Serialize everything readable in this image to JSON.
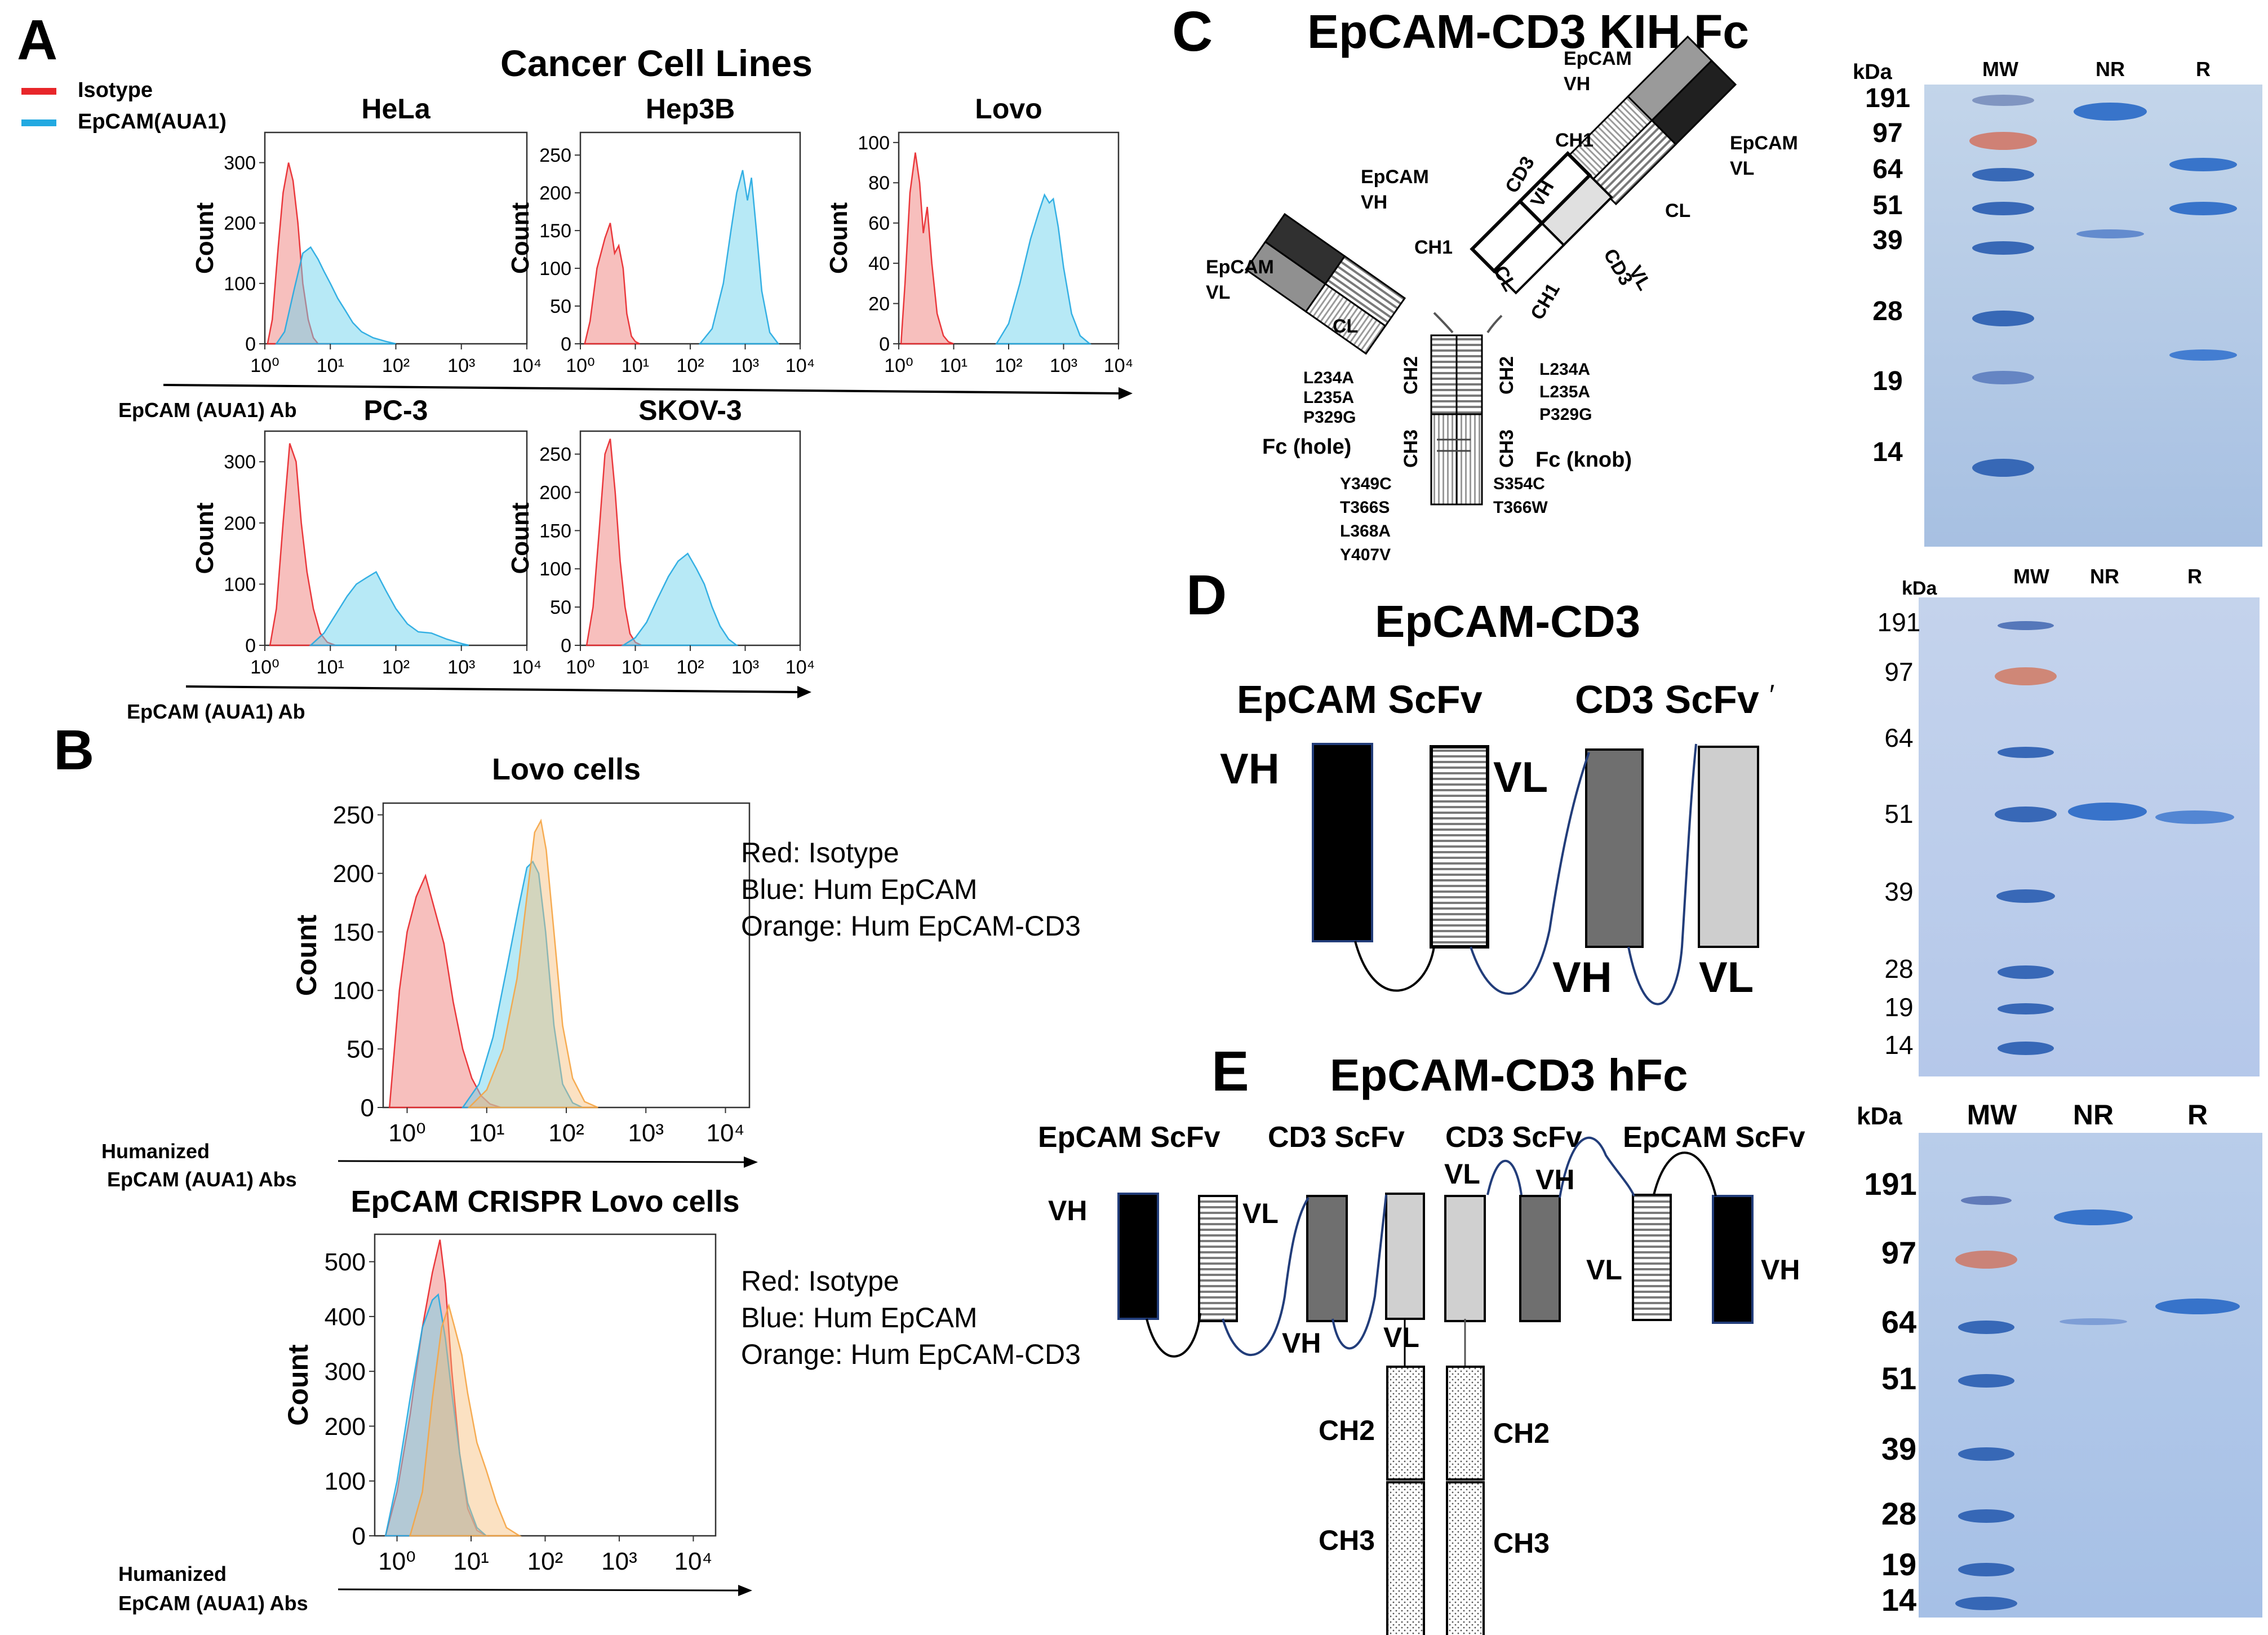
{
  "panels": {
    "A": {
      "letter": "A",
      "title": "Cancer Cell Lines",
      "legend": [
        {
          "label": "Isotype",
          "color": "#e8262a"
        },
        {
          "label": "EpCAM(AUA1)",
          "color": "#22a9e1"
        }
      ],
      "xlabel": "EpCAM (AUA1) Ab",
      "ylabel": "Count",
      "x_ticks": [
        "10⁰",
        "10¹",
        "10²",
        "10³",
        "10⁴"
      ]
    },
    "B": {
      "letter": "B",
      "xlabel_line1": "Humanized",
      "xlabel_line2": "EpCAM (AUA1) Abs",
      "legend_lines": [
        "Red: Isotype",
        "Blue: Hum EpCAM",
        "Orange: Hum EpCAM-CD3"
      ],
      "ylabel": "Count",
      "x_ticks": [
        "10⁰",
        "10¹",
        "10²",
        "10³",
        "10⁴"
      ]
    },
    "C": {
      "letter": "C",
      "title": "EpCAM-CD3 KIH Fc",
      "domains": {
        "epcam_vh_top": "EpCAM",
        "vh": "VH",
        "vl": "VL",
        "epcam": "EpCAM",
        "ch1": "CH1",
        "cl": "CL",
        "cd3": "CD3",
        "ch2": "CH2",
        "ch3": "CH3",
        "fc_hole": "Fc (hole)",
        "fc_knob": "Fc (knob)"
      },
      "mutations_left": [
        "L234A",
        "L235A",
        "P329G"
      ],
      "mutations_right": [
        "L234A",
        "L235A",
        "P329G"
      ],
      "hole_mutations": [
        "Y349C",
        "T366S",
        "L368A",
        "Y407V"
      ],
      "knob_mutations": [
        "S354C",
        "T366W"
      ]
    },
    "D": {
      "letter": "D",
      "title": "EpCAM-CD3",
      "epcam_scfv": "EpCAM ScFv",
      "cd3_scfv": "CD3 ScFv",
      "cd3_mark": "′",
      "vh": "VH",
      "vl": "VL"
    },
    "E": {
      "letter": "E",
      "title": "EpCAM-CD3 hFc",
      "scfv_labels": [
        "EpCAM ScFv",
        "CD3 ScFv",
        "CD3 ScFv",
        "EpCAM ScFv"
      ],
      "vh": "VH",
      "vl": "VL",
      "ch2": "CH2",
      "ch3": "CH3"
    }
  },
  "gels": [
    {
      "name": "KIH Fc gel",
      "kda": "kDa",
      "lanes": [
        "MW",
        "NR",
        "R"
      ],
      "markers": [
        "191",
        "97",
        "64",
        "51",
        "39",
        "28",
        "19",
        "14"
      ]
    },
    {
      "name": "EpCAM-CD3 gel",
      "kda": "kDa",
      "lanes": [
        "MW",
        "NR",
        "R"
      ],
      "markers": [
        "191",
        "97",
        "64",
        "51",
        "39",
        "28",
        "19",
        "14"
      ]
    },
    {
      "name": "hFc gel",
      "kda": "kDa",
      "lanes": [
        "MW",
        "NR",
        "R"
      ],
      "markers": [
        "191",
        "97",
        "64",
        "51",
        "39",
        "28",
        "19",
        "14"
      ]
    }
  ],
  "chart_data": [
    {
      "type": "area",
      "title": "HeLa",
      "xscale": "log",
      "xlim": [
        1,
        10000
      ],
      "ylim": [
        0,
        350
      ],
      "yticks": [
        0,
        100,
        200,
        300
      ],
      "series": [
        {
          "name": "Isotype",
          "color": "#e8262a",
          "x": [
            1.1,
            1.3,
            1.6,
            1.9,
            2.3,
            2.7,
            3.2,
            3.8,
            4.6,
            5.5,
            6.5,
            8,
            10
          ],
          "y": [
            0,
            40,
            160,
            250,
            300,
            270,
            200,
            100,
            40,
            10,
            0,
            0,
            0
          ]
        },
        {
          "name": "EpCAM(AUA1)",
          "color": "#22a9e1",
          "x": [
            1.5,
            2,
            2.8,
            3.8,
            5,
            6.5,
            8,
            10,
            13,
            17,
            22,
            30,
            45,
            70,
            100
          ],
          "y": [
            0,
            20,
            90,
            150,
            160,
            140,
            120,
            100,
            75,
            55,
            35,
            20,
            10,
            4,
            0
          ]
        }
      ]
    },
    {
      "type": "area",
      "title": "Hep3B",
      "xscale": "log",
      "xlim": [
        1,
        10000
      ],
      "ylim": [
        0,
        280
      ],
      "yticks": [
        0,
        50,
        100,
        150,
        200,
        250
      ],
      "series": [
        {
          "name": "Isotype",
          "color": "#e8262a",
          "x": [
            1.2,
            1.5,
            2,
            2.8,
            3.5,
            4.2,
            5,
            6,
            7,
            8.5,
            10,
            12
          ],
          "y": [
            0,
            30,
            100,
            140,
            160,
            120,
            130,
            100,
            40,
            10,
            3,
            0
          ]
        },
        {
          "name": "EpCAM(AUA1)",
          "color": "#22a9e1",
          "x": [
            150,
            250,
            400,
            550,
            700,
            900,
            1100,
            1300,
            1600,
            2000,
            2800,
            4000
          ],
          "y": [
            0,
            20,
            80,
            150,
            200,
            230,
            190,
            220,
            150,
            70,
            15,
            0
          ]
        }
      ]
    },
    {
      "type": "area",
      "title": "Lovo",
      "xscale": "log",
      "xlim": [
        1,
        10000
      ],
      "ylim": [
        0,
        105
      ],
      "yticks": [
        0,
        20,
        40,
        60,
        80,
        100
      ],
      "series": [
        {
          "name": "Isotype",
          "color": "#e8262a",
          "x": [
            1.1,
            1.3,
            1.6,
            2,
            2.4,
            2.8,
            3.3,
            4,
            5,
            6.5,
            8,
            10
          ],
          "y": [
            0,
            30,
            75,
            95,
            80,
            55,
            68,
            40,
            15,
            4,
            1,
            0
          ]
        },
        {
          "name": "EpCAM(AUA1)",
          "color": "#22a9e1",
          "x": [
            60,
            100,
            160,
            250,
            350,
            450,
            550,
            650,
            800,
            1000,
            1400,
            2000,
            3000
          ],
          "y": [
            0,
            10,
            30,
            52,
            65,
            74,
            70,
            72,
            58,
            38,
            15,
            4,
            0
          ]
        }
      ]
    },
    {
      "type": "area",
      "title": "PC-3",
      "xscale": "log",
      "xlim": [
        1,
        10000
      ],
      "ylim": [
        0,
        350
      ],
      "yticks": [
        0,
        100,
        200,
        300
      ],
      "series": [
        {
          "name": "Isotype",
          "color": "#e8262a",
          "x": [
            1.2,
            1.5,
            1.9,
            2.4,
            3,
            3.6,
            4.4,
            5.5,
            7,
            9,
            12
          ],
          "y": [
            0,
            60,
            200,
            330,
            300,
            200,
            120,
            60,
            20,
            5,
            0
          ]
        },
        {
          "name": "EpCAM(AUA1)",
          "color": "#22a9e1",
          "x": [
            5,
            8,
            12,
            18,
            25,
            35,
            50,
            70,
            100,
            150,
            220,
            350,
            600,
            1000,
            1300
          ],
          "y": [
            0,
            20,
            50,
            80,
            100,
            110,
            120,
            90,
            60,
            35,
            22,
            20,
            10,
            3,
            0
          ]
        }
      ]
    },
    {
      "type": "area",
      "title": "SKOV-3",
      "xscale": "log",
      "xlim": [
        1,
        10000
      ],
      "ylim": [
        0,
        280
      ],
      "yticks": [
        0,
        50,
        100,
        150,
        200,
        250
      ],
      "series": [
        {
          "name": "Isotype",
          "color": "#e8262a",
          "x": [
            1.3,
            1.7,
            2.2,
            2.8,
            3.5,
            4.3,
            5.3,
            6.5,
            8,
            10,
            13
          ],
          "y": [
            0,
            50,
            150,
            250,
            270,
            200,
            110,
            50,
            15,
            4,
            0
          ]
        },
        {
          "name": "EpCAM(AUA1)",
          "color": "#22a9e1",
          "x": [
            6,
            10,
            16,
            25,
            40,
            60,
            90,
            130,
            180,
            250,
            350,
            500,
            700
          ],
          "y": [
            0,
            10,
            30,
            60,
            90,
            110,
            120,
            100,
            80,
            50,
            25,
            8,
            0
          ]
        }
      ]
    },
    {
      "type": "area",
      "title": "Lovo cells",
      "xscale": "log",
      "xlim": [
        0.5,
        20000
      ],
      "ylim": [
        0,
        260
      ],
      "yticks": [
        0,
        50,
        100,
        150,
        200,
        250
      ],
      "series": [
        {
          "name": "Isotype",
          "color": "#e8262a",
          "x": [
            0.6,
            0.8,
            1.0,
            1.3,
            1.7,
            2.2,
            2.9,
            3.8,
            5,
            6.5,
            8.5,
            11,
            15
          ],
          "y": [
            0,
            100,
            150,
            180,
            198,
            170,
            140,
            90,
            50,
            25,
            10,
            3,
            0
          ]
        },
        {
          "name": "Hum EpCAM",
          "color": "#22a9e1",
          "x": [
            5,
            8,
            12,
            18,
            25,
            32,
            38,
            45,
            55,
            70,
            90,
            120,
            160
          ],
          "y": [
            0,
            20,
            60,
            120,
            170,
            205,
            210,
            200,
            150,
            70,
            20,
            4,
            0
          ]
        },
        {
          "name": "Hum EpCAM-CD3",
          "color": "#f5a442",
          "x": [
            6,
            10,
            16,
            24,
            32,
            40,
            48,
            56,
            70,
            90,
            120,
            170,
            250
          ],
          "y": [
            0,
            15,
            50,
            110,
            180,
            235,
            245,
            220,
            150,
            70,
            25,
            5,
            0
          ]
        }
      ]
    },
    {
      "type": "area",
      "title": "EpCAM CRISPR Lovo cells",
      "xscale": "log",
      "xlim": [
        0.5,
        20000
      ],
      "ylim": [
        0,
        550
      ],
      "yticks": [
        0,
        100,
        200,
        300,
        400,
        500
      ],
      "series": [
        {
          "name": "Isotype",
          "color": "#e8262a",
          "x": [
            0.7,
            1.0,
            1.5,
            2.2,
            3.0,
            3.8,
            4.5,
            5.5,
            7,
            9,
            12,
            16
          ],
          "y": [
            0,
            80,
            220,
            380,
            480,
            540,
            460,
            300,
            150,
            50,
            10,
            0
          ]
        },
        {
          "name": "Hum EpCAM",
          "color": "#22a9e1",
          "x": [
            0.7,
            1.0,
            1.5,
            2.2,
            3.0,
            3.6,
            4.5,
            5.5,
            7,
            9,
            12,
            16
          ],
          "y": [
            0,
            100,
            250,
            380,
            430,
            440,
            360,
            260,
            150,
            60,
            15,
            0
          ]
        },
        {
          "name": "Hum EpCAM-CD3",
          "color": "#f5a442",
          "x": [
            1.5,
            2.2,
            3,
            4,
            5,
            6,
            7.5,
            9,
            12,
            16,
            22,
            30,
            45
          ],
          "y": [
            0,
            80,
            250,
            380,
            420,
            380,
            330,
            260,
            170,
            120,
            60,
            15,
            0
          ]
        }
      ]
    }
  ]
}
